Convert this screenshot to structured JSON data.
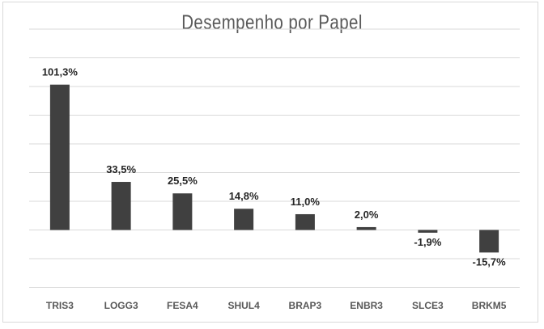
{
  "chart_data": {
    "type": "bar",
    "title": "Desempenho por Papel",
    "categories": [
      "TRIS3",
      "LOGG3",
      "FESA4",
      "SHUL4",
      "BRAP3",
      "ENBR3",
      "SLCE3",
      "BRKM5"
    ],
    "values": [
      101.3,
      33.5,
      25.5,
      14.8,
      11.0,
      2.0,
      -1.9,
      -15.7
    ],
    "data_labels": [
      "101,3%",
      "33,5%",
      "25,5%",
      "14,8%",
      "11,0%",
      "2,0%",
      "-1,9%",
      "-15,7%"
    ],
    "ylim": [
      -40,
      140
    ],
    "ytick_step": 20,
    "grid": true,
    "yaxis_labels_visible": false,
    "bar_color": "#404040",
    "gridline_color": "#d9d9d9"
  }
}
